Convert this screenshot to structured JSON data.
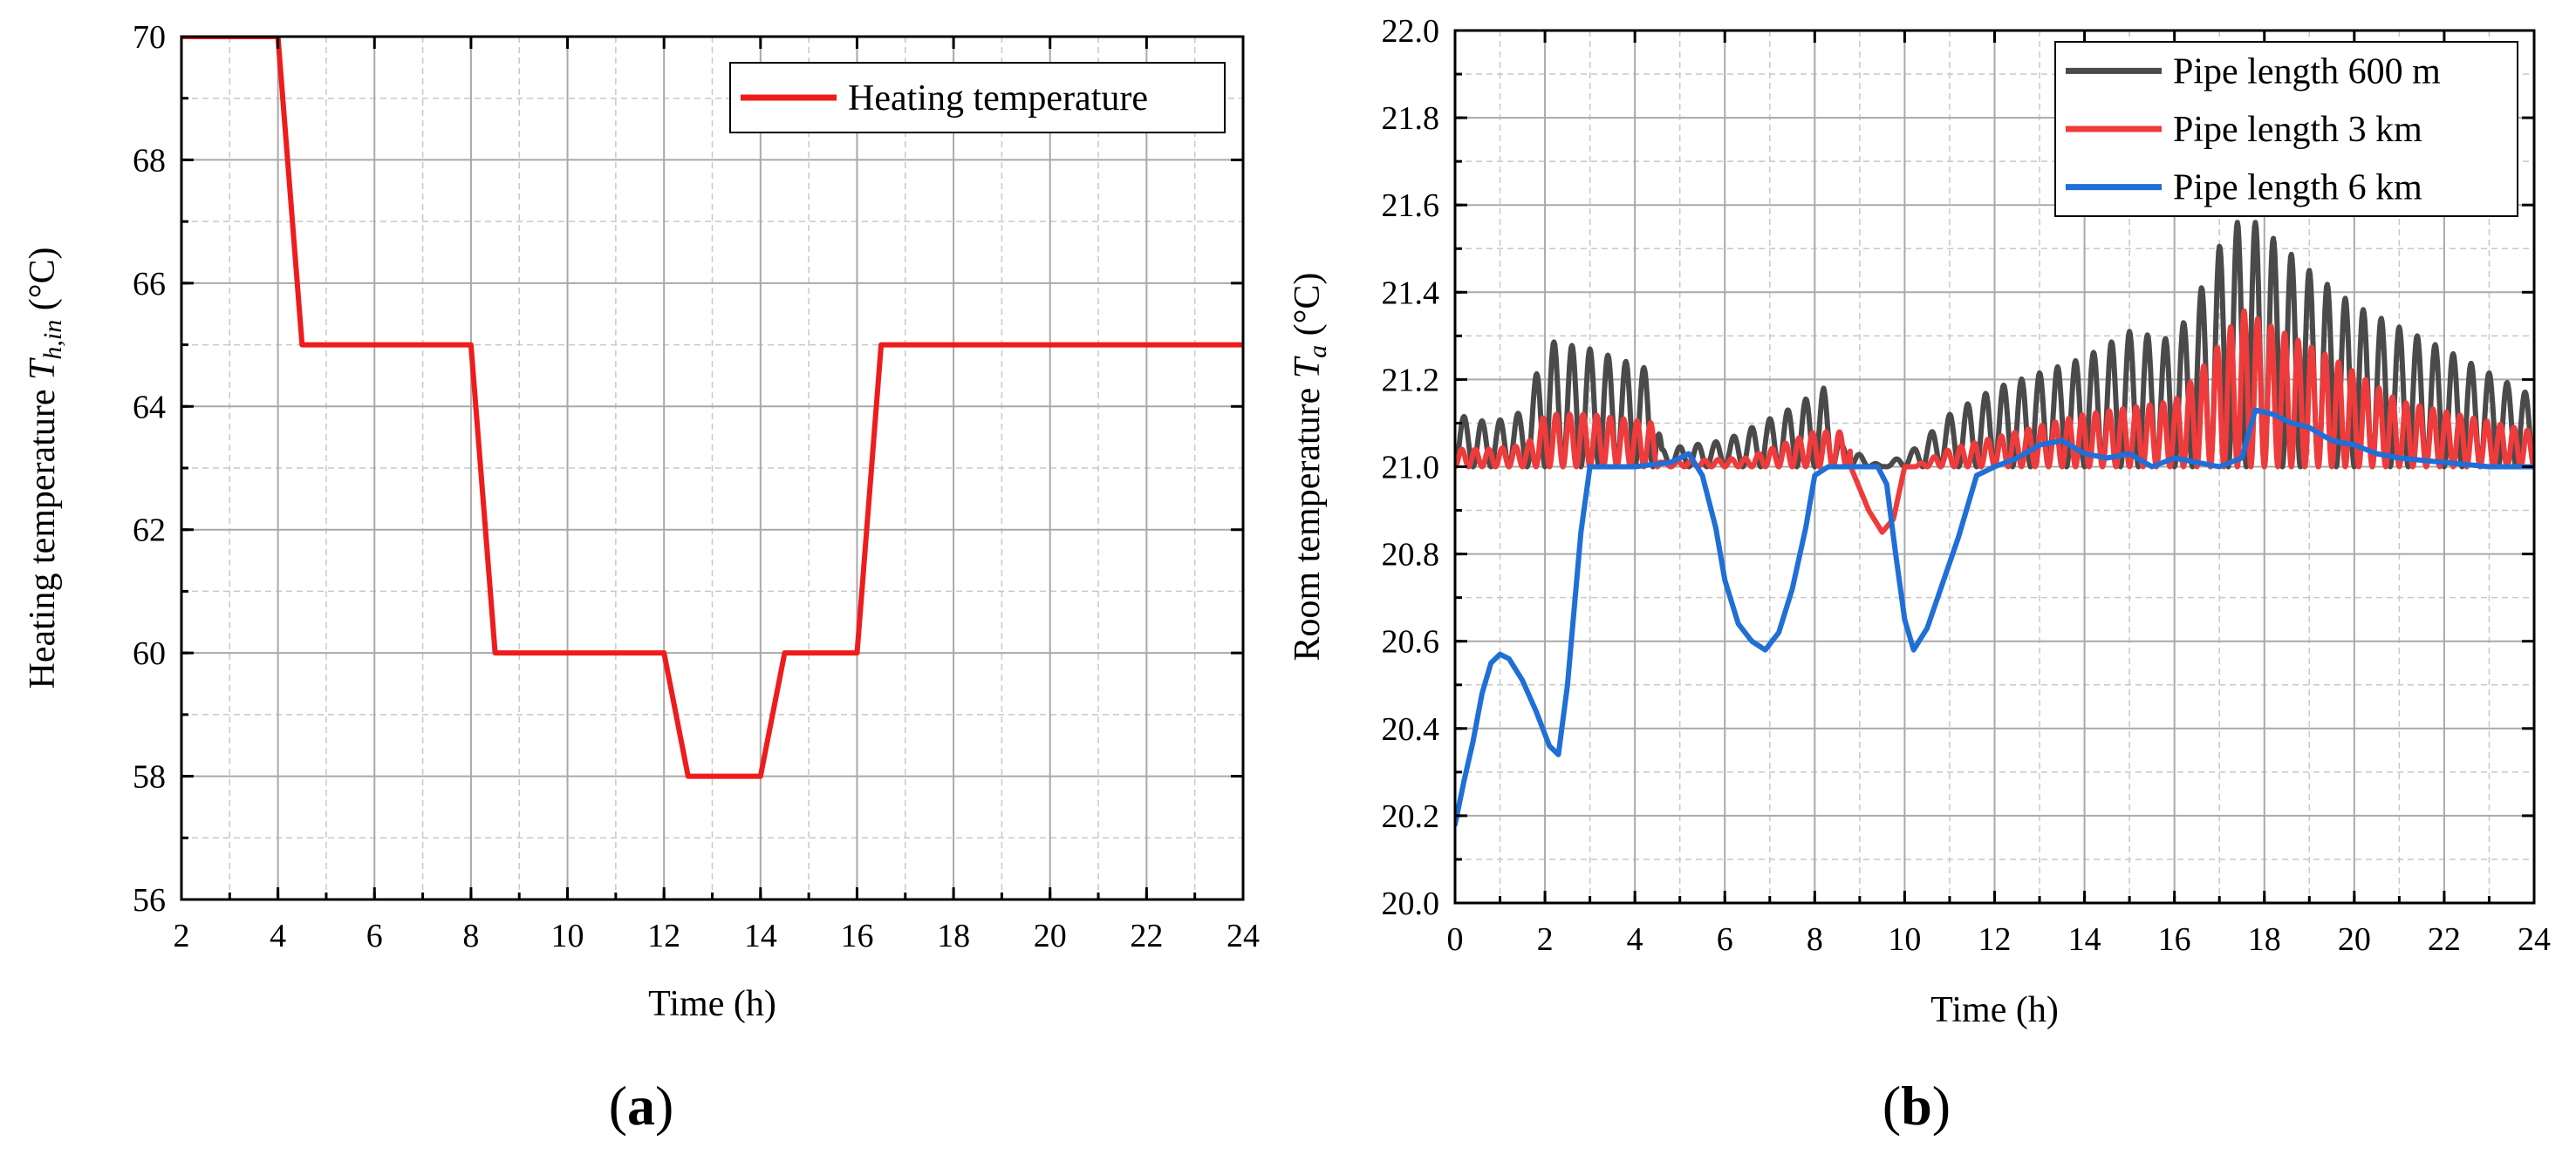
{
  "chart_data": [
    {
      "id": "a",
      "type": "line",
      "panel_label": "a",
      "xlabel": "Time (h)",
      "ylabel_text": "Heating temperature ",
      "ylabel_var": "T",
      "ylabel_sub": "h,in",
      "ylabel_unit": " (°C)",
      "xlim": [
        2,
        24
      ],
      "ylim": [
        56,
        70
      ],
      "x_ticks": [
        2,
        4,
        6,
        8,
        10,
        12,
        14,
        16,
        18,
        20,
        22,
        24
      ],
      "y_ticks": [
        56,
        58,
        60,
        62,
        64,
        66,
        68,
        70
      ],
      "x_tick_labels": [
        "2",
        "4",
        "6",
        "8",
        "10",
        "12",
        "14",
        "16",
        "18",
        "20",
        "22",
        "24"
      ],
      "y_tick_labels": [
        "56",
        "58",
        "60",
        "62",
        "64",
        "66",
        "68",
        "70"
      ],
      "x_minor_step": 1,
      "y_minor_step": 1,
      "grid": true,
      "legend_position": "top-right",
      "series": [
        {
          "name": "Heating temperature",
          "color": "#ee1c1c",
          "x": [
            2,
            4,
            4.5,
            8,
            8.5,
            12,
            12.5,
            14,
            14.5,
            16,
            16.5,
            24
          ],
          "y": [
            70,
            70,
            65,
            65,
            60,
            60,
            58,
            58,
            60,
            60,
            65,
            65
          ]
        }
      ]
    },
    {
      "id": "b",
      "type": "line",
      "panel_label": "b",
      "xlabel": "Time (h)",
      "ylabel_text": "Room temperature ",
      "ylabel_var": "T",
      "ylabel_sub": "a",
      "ylabel_unit": " (°C)",
      "xlim": [
        0,
        24
      ],
      "ylim": [
        20.0,
        22.0
      ],
      "x_ticks": [
        0,
        2,
        4,
        6,
        8,
        10,
        12,
        14,
        16,
        18,
        20,
        22,
        24
      ],
      "y_ticks": [
        20.0,
        20.2,
        20.4,
        20.6,
        20.8,
        21.0,
        21.2,
        21.4,
        21.6,
        21.8,
        22.0
      ],
      "x_tick_labels": [
        "0",
        "2",
        "4",
        "6",
        "8",
        "10",
        "12",
        "14",
        "16",
        "18",
        "20",
        "22",
        "24"
      ],
      "y_tick_labels": [
        "20.0",
        "20.2",
        "20.4",
        "20.6",
        "20.8",
        "21.0",
        "21.2",
        "21.4",
        "21.6",
        "21.8",
        "22.0"
      ],
      "x_minor_step": 1,
      "y_minor_step": 0.1,
      "grid": true,
      "legend_position": "top-right",
      "series": [
        {
          "name": "Pipe length 600 m",
          "color": "#4a4a4a",
          "baseline": 21.0,
          "oscillation_period_h": 0.4,
          "envelope": [
            [
              0,
              0.12
            ],
            [
              0.8,
              0.1
            ],
            [
              1.6,
              0.13
            ],
            [
              2.0,
              0.29
            ],
            [
              3.0,
              0.27
            ],
            [
              4.4,
              0.22
            ],
            [
              4.6,
              0.04
            ],
            [
              6.0,
              0.06
            ],
            [
              7.4,
              0.13
            ],
            [
              8.2,
              0.18
            ],
            [
              8.6,
              0.05
            ],
            [
              9.5,
              0.0
            ],
            [
              10.2,
              0.04
            ],
            [
              11.0,
              0.12
            ],
            [
              12.0,
              0.18
            ],
            [
              14.0,
              0.25
            ],
            [
              15.0,
              0.31
            ],
            [
              16.0,
              0.29
            ],
            [
              16.8,
              0.45
            ],
            [
              17.2,
              0.56
            ],
            [
              17.8,
              0.56
            ],
            [
              19.0,
              0.45
            ],
            [
              20.0,
              0.37
            ],
            [
              22.0,
              0.27
            ],
            [
              24.0,
              0.16
            ]
          ]
        },
        {
          "name": "Pipe length 3 km",
          "color": "#ef3b3b",
          "baseline": 21.0,
          "oscillation_period_h": 0.3,
          "envelope": [
            [
              0,
              0.04
            ],
            [
              0.8,
              0.04
            ],
            [
              1.6,
              0.05
            ],
            [
              2.0,
              0.12
            ],
            [
              3.0,
              0.12
            ],
            [
              4.4,
              0.1
            ],
            [
              4.6,
              0.01
            ],
            [
              6.5,
              0.02
            ],
            [
              8.0,
              0.08
            ],
            [
              8.7,
              0.08
            ],
            [
              9.0,
              0.0
            ],
            [
              10.2,
              0.0
            ],
            [
              11.0,
              0.04
            ],
            [
              12.5,
              0.08
            ],
            [
              14.0,
              0.12
            ],
            [
              16.0,
              0.15
            ],
            [
              16.8,
              0.25
            ],
            [
              17.5,
              0.36
            ],
            [
              18.0,
              0.33
            ],
            [
              19.5,
              0.25
            ],
            [
              21.0,
              0.15
            ],
            [
              24.0,
              0.08
            ]
          ],
          "dip": [
            [
              8.8,
              21.0
            ],
            [
              9.2,
              20.9
            ],
            [
              9.5,
              20.85
            ],
            [
              9.75,
              20.88
            ],
            [
              10.0,
              21.0
            ]
          ]
        },
        {
          "name": "Pipe length 6 km",
          "color": "#1f6fd6",
          "x": [
            0,
            0.2,
            0.4,
            0.6,
            0.8,
            1.0,
            1.2,
            1.5,
            1.8,
            2.1,
            2.3,
            2.5,
            2.8,
            3.0,
            3.3,
            4.0,
            4.8,
            5.2,
            5.5,
            5.8,
            6.0,
            6.3,
            6.6,
            6.9,
            7.2,
            7.5,
            7.8,
            8.0,
            8.3,
            8.6,
            9.0,
            9.4,
            9.6,
            9.8,
            10.0,
            10.2,
            10.5,
            10.8,
            11.2,
            11.6,
            12.0,
            12.5,
            13.0,
            13.5,
            14.0,
            14.5,
            15.0,
            15.5,
            16.0,
            16.5,
            17.0,
            17.5,
            17.8,
            18.2,
            18.6,
            19.0,
            19.5,
            20.0,
            20.5,
            21.0,
            22.0,
            23.0,
            24.0
          ],
          "y": [
            20.18,
            20.28,
            20.37,
            20.48,
            20.55,
            20.57,
            20.56,
            20.51,
            20.44,
            20.36,
            20.34,
            20.5,
            20.85,
            21.0,
            21.0,
            21.0,
            21.01,
            21.03,
            20.98,
            20.86,
            20.74,
            20.64,
            20.6,
            20.58,
            20.62,
            20.72,
            20.86,
            20.98,
            21.0,
            21.0,
            21.0,
            21.0,
            20.96,
            20.8,
            20.65,
            20.58,
            20.63,
            20.72,
            20.84,
            20.98,
            21.0,
            21.02,
            21.05,
            21.06,
            21.03,
            21.02,
            21.03,
            21.0,
            21.02,
            21.01,
            21.0,
            21.02,
            21.13,
            21.12,
            21.1,
            21.09,
            21.06,
            21.05,
            21.03,
            21.02,
            21.01,
            21.0,
            21.0
          ]
        }
      ]
    }
  ]
}
